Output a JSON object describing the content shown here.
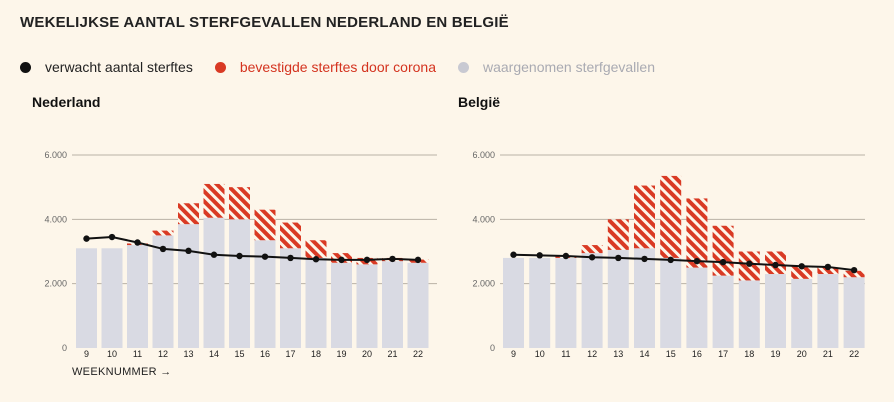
{
  "title": "WEKELIJKSE AANTAL STERFGEVALLEN NEDERLAND EN BELGIË",
  "legend": {
    "expected": {
      "label": "verwacht aantal sterftes",
      "color": "#111111"
    },
    "covid": {
      "label": "bevestigde sterftes door corona",
      "color": "#d93a24"
    },
    "observed": {
      "label": "waargenomen sterfgevallen",
      "color": "#c8c9d2"
    }
  },
  "x_axis_note": "WEEKNUMMER →",
  "chart_data": [
    {
      "type": "bar",
      "title": "Nederland",
      "categories": [
        "9",
        "10",
        "11",
        "12",
        "13",
        "14",
        "15",
        "16",
        "17",
        "18",
        "19",
        "20",
        "21",
        "22"
      ],
      "ylim": [
        0,
        6000
      ],
      "yticks": [
        0,
        2000,
        4000,
        6000
      ],
      "ytick_labels": [
        "0",
        "2.000",
        "4.000",
        "6.000"
      ],
      "series": [
        {
          "name": "waargenomen sterfgevallen",
          "values": [
            3100,
            3100,
            3200,
            3500,
            3850,
            4050,
            4000,
            3350,
            3100,
            2800,
            2650,
            2600,
            2700,
            2650
          ]
        },
        {
          "name": "bevestigde sterftes door corona",
          "values": [
            0,
            0,
            50,
            150,
            650,
            1050,
            1000,
            950,
            800,
            550,
            300,
            200,
            100,
            100
          ]
        },
        {
          "name": "verwacht aantal sterftes",
          "values": [
            3400,
            3450,
            3280,
            3080,
            3020,
            2900,
            2860,
            2840,
            2800,
            2760,
            2740,
            2740,
            2770,
            2740
          ]
        }
      ]
    },
    {
      "type": "bar",
      "title": "België",
      "categories": [
        "9",
        "10",
        "11",
        "12",
        "13",
        "14",
        "15",
        "16",
        "17",
        "18",
        "19",
        "20",
        "21",
        "22"
      ],
      "ylim": [
        0,
        6000
      ],
      "yticks": [
        0,
        2000,
        4000,
        6000
      ],
      "ytick_labels": [
        "0",
        "2.000",
        "4.000",
        "6.000"
      ],
      "series": [
        {
          "name": "waargenomen sterfgevallen",
          "values": [
            2800,
            2800,
            2800,
            2950,
            3050,
            3100,
            2800,
            2500,
            2250,
            2100,
            2300,
            2150,
            2300,
            2200
          ]
        },
        {
          "name": "bevestigde sterftes door corona",
          "values": [
            0,
            0,
            50,
            250,
            950,
            1950,
            2550,
            2150,
            1550,
            900,
            700,
            400,
            200,
            200
          ]
        },
        {
          "name": "verwacht aantal sterftes",
          "values": [
            2900,
            2880,
            2860,
            2820,
            2800,
            2770,
            2740,
            2700,
            2670,
            2620,
            2580,
            2540,
            2520,
            2420
          ]
        }
      ]
    }
  ]
}
